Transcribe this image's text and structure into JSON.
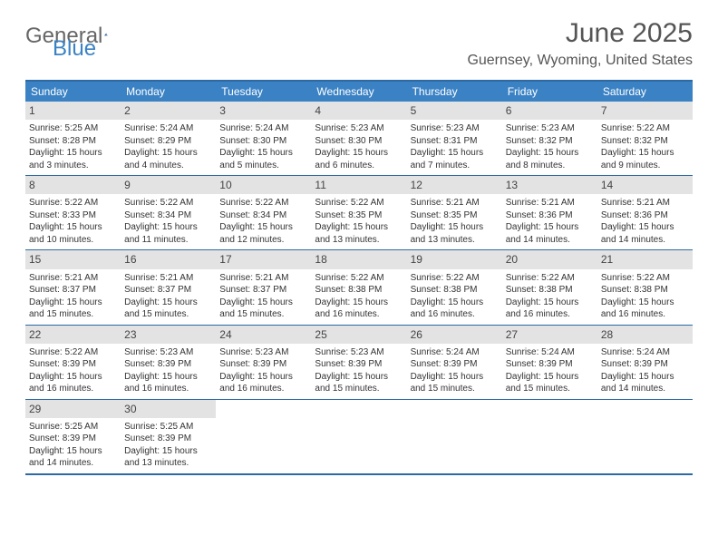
{
  "logo": {
    "text1": "General",
    "text2": "Blue"
  },
  "title": "June 2025",
  "location": "Guernsey, Wyoming, United States",
  "colors": {
    "header_bg": "#3b82c4",
    "border": "#2d6aa3",
    "daynum_bg": "#e3e3e3"
  },
  "day_names": [
    "Sunday",
    "Monday",
    "Tuesday",
    "Wednesday",
    "Thursday",
    "Friday",
    "Saturday"
  ],
  "weeks": [
    [
      {
        "n": "1",
        "sr": "Sunrise: 5:25 AM",
        "ss": "Sunset: 8:28 PM",
        "dl": "Daylight: 15 hours and 3 minutes."
      },
      {
        "n": "2",
        "sr": "Sunrise: 5:24 AM",
        "ss": "Sunset: 8:29 PM",
        "dl": "Daylight: 15 hours and 4 minutes."
      },
      {
        "n": "3",
        "sr": "Sunrise: 5:24 AM",
        "ss": "Sunset: 8:30 PM",
        "dl": "Daylight: 15 hours and 5 minutes."
      },
      {
        "n": "4",
        "sr": "Sunrise: 5:23 AM",
        "ss": "Sunset: 8:30 PM",
        "dl": "Daylight: 15 hours and 6 minutes."
      },
      {
        "n": "5",
        "sr": "Sunrise: 5:23 AM",
        "ss": "Sunset: 8:31 PM",
        "dl": "Daylight: 15 hours and 7 minutes."
      },
      {
        "n": "6",
        "sr": "Sunrise: 5:23 AM",
        "ss": "Sunset: 8:32 PM",
        "dl": "Daylight: 15 hours and 8 minutes."
      },
      {
        "n": "7",
        "sr": "Sunrise: 5:22 AM",
        "ss": "Sunset: 8:32 PM",
        "dl": "Daylight: 15 hours and 9 minutes."
      }
    ],
    [
      {
        "n": "8",
        "sr": "Sunrise: 5:22 AM",
        "ss": "Sunset: 8:33 PM",
        "dl": "Daylight: 15 hours and 10 minutes."
      },
      {
        "n": "9",
        "sr": "Sunrise: 5:22 AM",
        "ss": "Sunset: 8:34 PM",
        "dl": "Daylight: 15 hours and 11 minutes."
      },
      {
        "n": "10",
        "sr": "Sunrise: 5:22 AM",
        "ss": "Sunset: 8:34 PM",
        "dl": "Daylight: 15 hours and 12 minutes."
      },
      {
        "n": "11",
        "sr": "Sunrise: 5:22 AM",
        "ss": "Sunset: 8:35 PM",
        "dl": "Daylight: 15 hours and 13 minutes."
      },
      {
        "n": "12",
        "sr": "Sunrise: 5:21 AM",
        "ss": "Sunset: 8:35 PM",
        "dl": "Daylight: 15 hours and 13 minutes."
      },
      {
        "n": "13",
        "sr": "Sunrise: 5:21 AM",
        "ss": "Sunset: 8:36 PM",
        "dl": "Daylight: 15 hours and 14 minutes."
      },
      {
        "n": "14",
        "sr": "Sunrise: 5:21 AM",
        "ss": "Sunset: 8:36 PM",
        "dl": "Daylight: 15 hours and 14 minutes."
      }
    ],
    [
      {
        "n": "15",
        "sr": "Sunrise: 5:21 AM",
        "ss": "Sunset: 8:37 PM",
        "dl": "Daylight: 15 hours and 15 minutes."
      },
      {
        "n": "16",
        "sr": "Sunrise: 5:21 AM",
        "ss": "Sunset: 8:37 PM",
        "dl": "Daylight: 15 hours and 15 minutes."
      },
      {
        "n": "17",
        "sr": "Sunrise: 5:21 AM",
        "ss": "Sunset: 8:37 PM",
        "dl": "Daylight: 15 hours and 15 minutes."
      },
      {
        "n": "18",
        "sr": "Sunrise: 5:22 AM",
        "ss": "Sunset: 8:38 PM",
        "dl": "Daylight: 15 hours and 16 minutes."
      },
      {
        "n": "19",
        "sr": "Sunrise: 5:22 AM",
        "ss": "Sunset: 8:38 PM",
        "dl": "Daylight: 15 hours and 16 minutes."
      },
      {
        "n": "20",
        "sr": "Sunrise: 5:22 AM",
        "ss": "Sunset: 8:38 PM",
        "dl": "Daylight: 15 hours and 16 minutes."
      },
      {
        "n": "21",
        "sr": "Sunrise: 5:22 AM",
        "ss": "Sunset: 8:38 PM",
        "dl": "Daylight: 15 hours and 16 minutes."
      }
    ],
    [
      {
        "n": "22",
        "sr": "Sunrise: 5:22 AM",
        "ss": "Sunset: 8:39 PM",
        "dl": "Daylight: 15 hours and 16 minutes."
      },
      {
        "n": "23",
        "sr": "Sunrise: 5:23 AM",
        "ss": "Sunset: 8:39 PM",
        "dl": "Daylight: 15 hours and 16 minutes."
      },
      {
        "n": "24",
        "sr": "Sunrise: 5:23 AM",
        "ss": "Sunset: 8:39 PM",
        "dl": "Daylight: 15 hours and 16 minutes."
      },
      {
        "n": "25",
        "sr": "Sunrise: 5:23 AM",
        "ss": "Sunset: 8:39 PM",
        "dl": "Daylight: 15 hours and 15 minutes."
      },
      {
        "n": "26",
        "sr": "Sunrise: 5:24 AM",
        "ss": "Sunset: 8:39 PM",
        "dl": "Daylight: 15 hours and 15 minutes."
      },
      {
        "n": "27",
        "sr": "Sunrise: 5:24 AM",
        "ss": "Sunset: 8:39 PM",
        "dl": "Daylight: 15 hours and 15 minutes."
      },
      {
        "n": "28",
        "sr": "Sunrise: 5:24 AM",
        "ss": "Sunset: 8:39 PM",
        "dl": "Daylight: 15 hours and 14 minutes."
      }
    ],
    [
      {
        "n": "29",
        "sr": "Sunrise: 5:25 AM",
        "ss": "Sunset: 8:39 PM",
        "dl": "Daylight: 15 hours and 14 minutes."
      },
      {
        "n": "30",
        "sr": "Sunrise: 5:25 AM",
        "ss": "Sunset: 8:39 PM",
        "dl": "Daylight: 15 hours and 13 minutes."
      },
      {
        "empty": true
      },
      {
        "empty": true
      },
      {
        "empty": true
      },
      {
        "empty": true
      },
      {
        "empty": true
      }
    ]
  ]
}
